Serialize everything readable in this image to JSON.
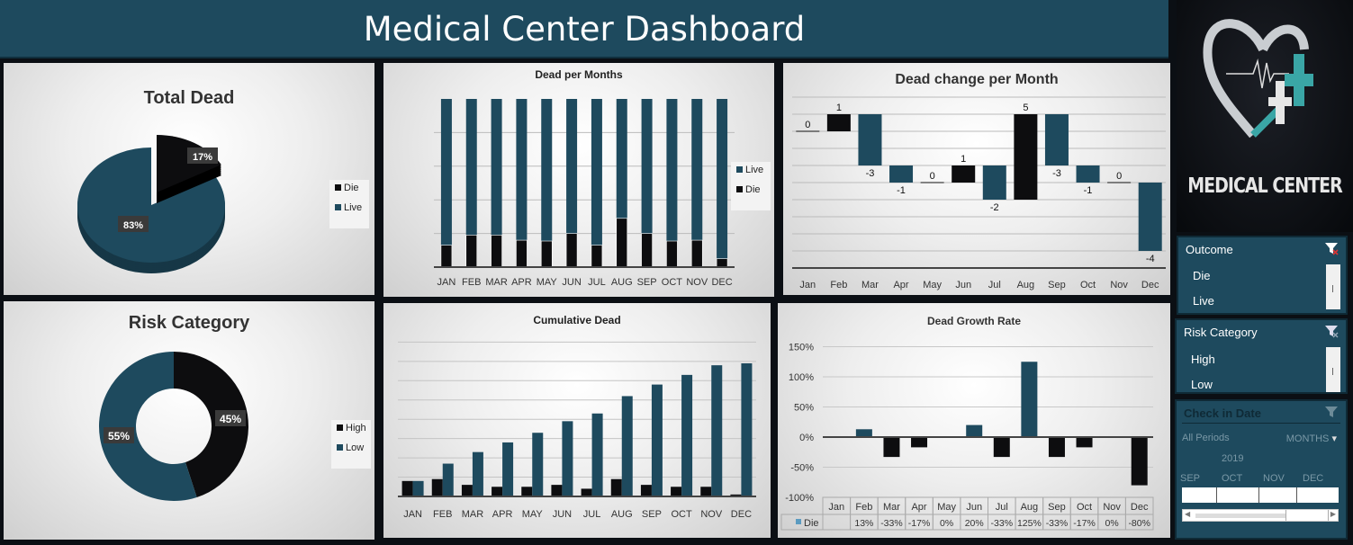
{
  "header": {
    "title": "Medical Center Dashboard"
  },
  "logo": {
    "text": "MEDICAL CENTER"
  },
  "colors": {
    "header": "#1e4a5e",
    "live": "#1e4a5e",
    "die": "#0d0d0f",
    "accent": "#1e4a5e"
  },
  "total_dead": {
    "title": "Total Dead",
    "legend": [
      "Die",
      "Live"
    ],
    "labels": [
      "17%",
      "83%"
    ]
  },
  "risk": {
    "title": "Risk Category",
    "legend": [
      "High",
      "Low"
    ],
    "labels": [
      "45%",
      "55%"
    ]
  },
  "slicers": {
    "outcome": {
      "title": "Outcome",
      "items": [
        "Die",
        "Live"
      ]
    },
    "risk": {
      "title": "Risk Category",
      "items": [
        "High",
        "Low"
      ]
    },
    "checkin": {
      "title": "Check in Date",
      "all_periods": "All Periods",
      "level": "MONTHS",
      "year": "2019",
      "months": [
        "SEP",
        "OCT",
        "NOV",
        "DEC"
      ]
    }
  },
  "chart_data": [
    {
      "type": "pie",
      "title": "Total Dead",
      "categories": [
        "Die",
        "Live"
      ],
      "values": [
        17,
        83
      ],
      "data_labels": [
        "17%",
        "83%"
      ],
      "legend": "right"
    },
    {
      "type": "bar",
      "stacked": "percent",
      "title": "Dead per Months",
      "categories": [
        "JAN",
        "FEB",
        "MAR",
        "APR",
        "MAY",
        "JUN",
        "JUL",
        "AUG",
        "SEP",
        "OCT",
        "NOV",
        "DEC"
      ],
      "series": [
        {
          "name": "Live",
          "values": [
            87,
            81,
            81,
            84,
            84.5,
            80,
            87,
            71,
            80,
            84.5,
            84,
            95
          ]
        },
        {
          "name": "Die",
          "values": [
            13,
            19,
            19,
            16,
            15.5,
            20,
            13,
            29,
            20,
            15.5,
            16,
            5
          ]
        }
      ],
      "ylim": [
        0,
        100
      ],
      "grid": true,
      "legend": "right"
    },
    {
      "type": "bar",
      "subtype": "waterfall",
      "title": "Dead change per Month",
      "categories": [
        "Jan",
        "Feb",
        "Mar",
        "Apr",
        "May",
        "Jun",
        "Jul",
        "Aug",
        "Sep",
        "Oct",
        "Nov",
        "Dec"
      ],
      "start": 8,
      "values": [
        0,
        1,
        -3,
        -1,
        0,
        1,
        -2,
        5,
        -3,
        -1,
        0,
        -4
      ],
      "data_labels": [
        "0",
        "1",
        "-3",
        "-1",
        "0",
        "1",
        "-2",
        "5",
        "-3",
        "-1",
        "0",
        "-4"
      ],
      "ylim": [
        0,
        10
      ],
      "grid": true
    },
    {
      "type": "pie",
      "subtype": "doughnut",
      "title": "Risk Category",
      "categories": [
        "High",
        "Low"
      ],
      "values": [
        45,
        55
      ],
      "data_labels": [
        "45%",
        "55%"
      ],
      "legend": "right"
    },
    {
      "type": "bar",
      "title": "Cumulative Dead",
      "categories": [
        "JAN",
        "FEB",
        "MAR",
        "APR",
        "MAY",
        "JUN",
        "JUL",
        "AUG",
        "SEP",
        "OCT",
        "NOV",
        "DEC"
      ],
      "series": [
        {
          "values": [
            8,
            9,
            6,
            5,
            5,
            6,
            4,
            9,
            6,
            5,
            5,
            1
          ]
        },
        {
          "values": [
            8,
            17,
            23,
            28,
            33,
            39,
            43,
            52,
            58,
            63,
            68,
            69
          ]
        }
      ],
      "ylim": [
        0,
        80
      ],
      "grid": true
    },
    {
      "type": "bar",
      "title": "Dead Growth Rate",
      "categories": [
        "Jan",
        "Feb",
        "Mar",
        "Apr",
        "May",
        "Jun",
        "Jul",
        "Aug",
        "Sep",
        "Oct",
        "Nov",
        "Dec"
      ],
      "series": [
        {
          "name": "Die",
          "values": [
            null,
            13,
            -33,
            -17,
            0,
            20,
            -33,
            125,
            -33,
            -17,
            0,
            -80
          ],
          "labels": [
            "",
            "13%",
            "-33%",
            "-17%",
            "0%",
            "20%",
            "-33%",
            "125%",
            "-33%",
            "-17%",
            "0%",
            "-80%"
          ]
        }
      ],
      "yticks": [
        "150%",
        "100%",
        "50%",
        "0%",
        "-50%",
        "-100%"
      ],
      "ylim": [
        -100,
        150
      ],
      "grid": true,
      "data_table": true
    }
  ]
}
